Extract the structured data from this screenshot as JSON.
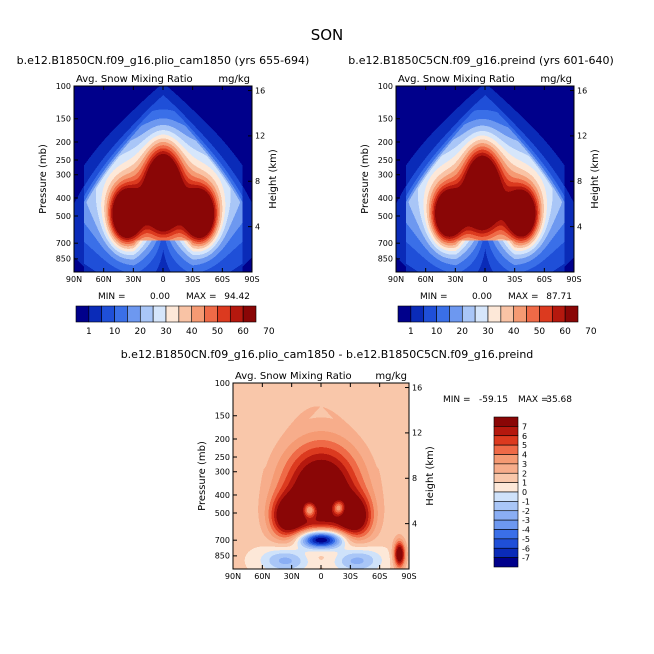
{
  "season": "SON",
  "chart_data": [
    {
      "type": "heatmap",
      "title": "b.e12.B1850CN.f09_g16.plio_cam1850 (yrs 655-694)",
      "variable": "Avg. Snow Mixing Ratio",
      "units": "mg/kg",
      "xlabel": "",
      "ylabel": "Pressure (mb)",
      "ylabel_right": "Height (km)",
      "x_ticks": [
        "90N",
        "60N",
        "30N",
        "0",
        "30S",
        "60S",
        "90S"
      ],
      "y_ticks": [
        "100",
        "150",
        "200",
        "250",
        "300",
        "400",
        "500",
        "700",
        "850"
      ],
      "y_ticks_right": [
        "16",
        "12",
        "8",
        "4"
      ],
      "ylim": [
        1000,
        100
      ],
      "stats": {
        "min_label": "MIN =",
        "min": "0.00",
        "max_label": "MAX =",
        "max": "94.42"
      },
      "max_value": 94.42
    },
    {
      "type": "heatmap",
      "title": "b.e12.B1850C5CN.f09_g16.preind (yrs 601-640)",
      "variable": "Avg. Snow Mixing Ratio",
      "units": "mg/kg",
      "xlabel": "",
      "ylabel": "Pressure (mb)",
      "ylabel_right": "Height (km)",
      "x_ticks": [
        "90N",
        "60N",
        "30N",
        "0",
        "30S",
        "60S",
        "90S"
      ],
      "y_ticks": [
        "100",
        "150",
        "200",
        "250",
        "300",
        "400",
        "500",
        "700",
        "850"
      ],
      "y_ticks_right": [
        "16",
        "12",
        "8",
        "4"
      ],
      "ylim": [
        1000,
        100
      ],
      "stats": {
        "min_label": "MIN =",
        "min": "0.00",
        "max_label": "MAX =",
        "max": "87.71"
      },
      "max_value": 87.71
    },
    {
      "type": "heatmap",
      "title": "b.e12.B1850CN.f09_g16.plio_cam1850 - b.e12.B1850C5CN.f09_g16.preind",
      "variable": "Avg. Snow Mixing Ratio",
      "units": "mg/kg",
      "xlabel": "",
      "ylabel": "Pressure (mb)",
      "ylabel_right": "Height (km)",
      "x_ticks": [
        "90N",
        "60N",
        "30N",
        "0",
        "30S",
        "60S",
        "90S"
      ],
      "y_ticks": [
        "100",
        "150",
        "200",
        "250",
        "300",
        "400",
        "500",
        "700",
        "850"
      ],
      "y_ticks_right": [
        "16",
        "12",
        "8",
        "4"
      ],
      "ylim": [
        1000,
        100
      ],
      "stats": {
        "min_label": "MIN =",
        "min": "-59.15",
        "max_label": "MAX =",
        "max": "35.68"
      }
    }
  ],
  "colorbar_top": {
    "levels": [
      "1",
      "10",
      "20",
      "30",
      "40",
      "50",
      "60",
      "70"
    ],
    "colors": [
      "#00008b",
      "#0a2bb8",
      "#1f4fd8",
      "#3a6fe8",
      "#6d98f0",
      "#a9c6f7",
      "#d6e6fb",
      "#fde8d8",
      "#f9c3a5",
      "#f59a73",
      "#ef6a47",
      "#dc3a1f",
      "#b5180e",
      "#8a0606"
    ]
  },
  "colorbar_diff": {
    "levels": [
      "7",
      "6",
      "5",
      "4",
      "3",
      "2",
      "1",
      "0",
      "-1",
      "-2",
      "-3",
      "-4",
      "-5",
      "-6",
      "-7"
    ],
    "colors": [
      "#8a0606",
      "#b5180e",
      "#dc3a1f",
      "#ef6a47",
      "#f59a73",
      "#f7ad8b",
      "#f9c7aa",
      "#fde8d8",
      "#cfe2fa",
      "#a9c6f7",
      "#8aaef4",
      "#6d98f0",
      "#3a6fe8",
      "#1f4fd8",
      "#0a2bb8",
      "#00008b"
    ]
  }
}
